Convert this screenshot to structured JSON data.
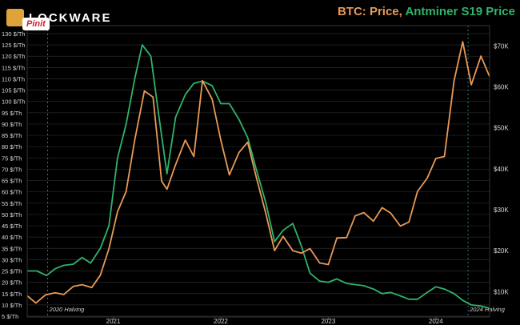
{
  "brand": {
    "name": "LOCKWARE",
    "pin_label": "Pinit"
  },
  "title": {
    "btc": "BTC: Price",
    "separator": ",",
    "antminer": "Antminer S19 Price"
  },
  "colors": {
    "btc": "#e89a56",
    "antminer": "#2fb36a",
    "grid": "#2a2a2a",
    "axis_text": "#d8d8d8"
  },
  "chart_data": {
    "type": "line",
    "x_ticks": [
      {
        "label": "2021",
        "value": 2021.0
      },
      {
        "label": "2022",
        "value": 2022.0
      },
      {
        "label": "2023",
        "value": 2023.0
      },
      {
        "label": "2024",
        "value": 2024.0
      }
    ],
    "xlim": [
      2020.2,
      2024.5
    ],
    "y_left": {
      "ticks": [
        "5 $/Th",
        "10 $/Th",
        "15 $/Th",
        "20 $/Th",
        "25 $/Th",
        "30 $/Th",
        "35 $/Th",
        "40 $/Th",
        "45 $/Th",
        "50 $/Th",
        "55 $/Th",
        "60 $/Th",
        "65 $/Th",
        "70 $/Th",
        "75 $/Th",
        "80 $/Th",
        "85 $/Th",
        "90 $/Th",
        "95 $/Th",
        "100 $/Th",
        "105 $/Th",
        "110 $/Th",
        "115 $/Th",
        "120 $/Th",
        "125 $/Th",
        "130 $/Th"
      ],
      "tick_values": [
        5,
        10,
        15,
        20,
        25,
        30,
        35,
        40,
        45,
        50,
        55,
        60,
        65,
        70,
        75,
        80,
        85,
        90,
        95,
        100,
        105,
        110,
        115,
        120,
        125,
        130
      ],
      "range": [
        5,
        130
      ]
    },
    "y_right": {
      "ticks": [
        "$10K",
        "$20K",
        "$30K",
        "$40K",
        "$50K",
        "$60K",
        "$70K"
      ],
      "tick_values": [
        10000,
        20000,
        30000,
        40000,
        50000,
        60000,
        70000
      ],
      "range": [
        4000,
        73000
      ]
    },
    "annotations": [
      {
        "label": "2020 Halving",
        "x": 2020.39
      },
      {
        "label": "2024 Halving",
        "x": 2024.3
      }
    ],
    "series": [
      {
        "name": "BTC: Price",
        "axis": "right",
        "points": [
          [
            2020.2,
            9000
          ],
          [
            2020.28,
            7200
          ],
          [
            2020.37,
            9200
          ],
          [
            2020.46,
            9700
          ],
          [
            2020.54,
            9300
          ],
          [
            2020.63,
            11300
          ],
          [
            2020.71,
            11700
          ],
          [
            2020.8,
            11000
          ],
          [
            2020.88,
            14000
          ],
          [
            2020.96,
            20500
          ],
          [
            2021.04,
            29500
          ],
          [
            2021.12,
            34500
          ],
          [
            2021.2,
            47000
          ],
          [
            2021.29,
            59000
          ],
          [
            2021.37,
            57500
          ],
          [
            2021.45,
            37000
          ],
          [
            2021.5,
            35000
          ],
          [
            2021.58,
            41000
          ],
          [
            2021.67,
            47000
          ],
          [
            2021.75,
            43000
          ],
          [
            2021.83,
            61500
          ],
          [
            2021.92,
            57000
          ],
          [
            2022.0,
            47000
          ],
          [
            2022.08,
            38500
          ],
          [
            2022.17,
            44000
          ],
          [
            2022.25,
            46500
          ],
          [
            2022.33,
            38000
          ],
          [
            2022.42,
            29000
          ],
          [
            2022.5,
            20000
          ],
          [
            2022.58,
            23500
          ],
          [
            2022.67,
            20000
          ],
          [
            2022.75,
            19400
          ],
          [
            2022.83,
            20500
          ],
          [
            2022.92,
            17000
          ],
          [
            2023.0,
            16600
          ],
          [
            2023.08,
            23100
          ],
          [
            2023.17,
            23200
          ],
          [
            2023.25,
            28500
          ],
          [
            2023.33,
            29300
          ],
          [
            2023.42,
            27200
          ],
          [
            2023.5,
            30500
          ],
          [
            2023.58,
            29200
          ],
          [
            2023.67,
            26000
          ],
          [
            2023.75,
            27000
          ],
          [
            2023.83,
            34500
          ],
          [
            2023.92,
            37700
          ],
          [
            2024.0,
            42500
          ],
          [
            2024.08,
            43000
          ],
          [
            2024.17,
            61500
          ],
          [
            2024.25,
            71000
          ],
          [
            2024.33,
            60500
          ],
          [
            2024.42,
            67500
          ],
          [
            2024.5,
            62500
          ]
        ]
      },
      {
        "name": "Antminer S19 Price",
        "axis": "left",
        "points": [
          [
            2020.2,
            25
          ],
          [
            2020.29,
            25
          ],
          [
            2020.38,
            23
          ],
          [
            2020.46,
            26
          ],
          [
            2020.54,
            27.5
          ],
          [
            2020.63,
            28
          ],
          [
            2020.71,
            31
          ],
          [
            2020.79,
            28.5
          ],
          [
            2020.88,
            35
          ],
          [
            2020.96,
            45
          ],
          [
            2021.04,
            75
          ],
          [
            2021.12,
            90
          ],
          [
            2021.2,
            110
          ],
          [
            2021.27,
            125
          ],
          [
            2021.35,
            120
          ],
          [
            2021.42,
            95
          ],
          [
            2021.5,
            68
          ],
          [
            2021.58,
            93
          ],
          [
            2021.67,
            103
          ],
          [
            2021.75,
            108
          ],
          [
            2021.83,
            109
          ],
          [
            2021.92,
            107
          ],
          [
            2022.0,
            99
          ],
          [
            2022.08,
            99
          ],
          [
            2022.17,
            92
          ],
          [
            2022.25,
            84
          ],
          [
            2022.33,
            70
          ],
          [
            2022.42,
            55
          ],
          [
            2022.5,
            38
          ],
          [
            2022.58,
            43
          ],
          [
            2022.67,
            46
          ],
          [
            2022.75,
            36
          ],
          [
            2022.83,
            24
          ],
          [
            2022.92,
            20.5
          ],
          [
            2023.0,
            20
          ],
          [
            2023.08,
            21.5
          ],
          [
            2023.17,
            19.5
          ],
          [
            2023.25,
            19
          ],
          [
            2023.33,
            18.5
          ],
          [
            2023.42,
            17
          ],
          [
            2023.5,
            15
          ],
          [
            2023.58,
            15.5
          ],
          [
            2023.67,
            14
          ],
          [
            2023.75,
            12.5
          ],
          [
            2023.83,
            12.5
          ],
          [
            2023.92,
            15.5
          ],
          [
            2024.0,
            18
          ],
          [
            2024.08,
            17
          ],
          [
            2024.17,
            15
          ],
          [
            2024.25,
            12
          ],
          [
            2024.33,
            10
          ],
          [
            2024.42,
            9.5
          ],
          [
            2024.5,
            8.5
          ]
        ]
      }
    ],
    "grid": true
  }
}
